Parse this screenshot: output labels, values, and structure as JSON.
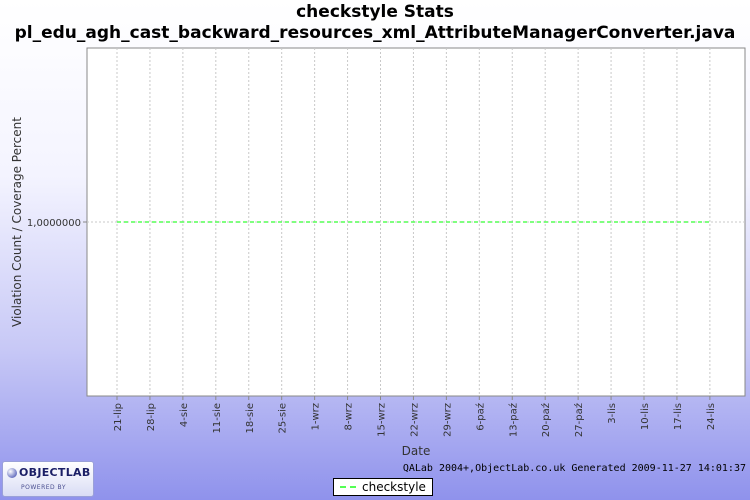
{
  "chart_data": {
    "type": "line",
    "title": "checkstyle  Stats",
    "subtitle": "pl_edu_agh_cast_backward_resources_xml_AttributeManagerConverter.java",
    "xlabel": "Date",
    "ylabel": "Violation Count / Coverage Percent",
    "x_tick_labels": [
      "21-lip",
      "28-lip",
      "4-sie",
      "11-sie",
      "18-sie",
      "25-sie",
      "1-wrz",
      "8-wrz",
      "15-wrz",
      "22-wrz",
      "29-wrz",
      "6-paź",
      "13-paź",
      "20-paź",
      "27-paź",
      "3-lis",
      "10-lis",
      "17-lis",
      "24-lis"
    ],
    "x_range": [
      "2009-07-21",
      "2009-11-27"
    ],
    "y_tick_labels": [
      "1,0000000"
    ],
    "ylim": [
      0,
      2
    ],
    "grid": true,
    "legend_position": "bottom",
    "series": [
      {
        "name": "checkstyle",
        "color": "#55ff55",
        "style": "dashed",
        "x": [
          "2009-07-21",
          "2009-07-28",
          "2009-08-04",
          "2009-08-11",
          "2009-08-18",
          "2009-08-25",
          "2009-09-01",
          "2009-09-08",
          "2009-09-15",
          "2009-09-22",
          "2009-09-29",
          "2009-10-06",
          "2009-10-13",
          "2009-10-20",
          "2009-10-27",
          "2009-11-03",
          "2009-11-10",
          "2009-11-17",
          "2009-11-24"
        ],
        "values": [
          1,
          1,
          1,
          1,
          1,
          1,
          1,
          1,
          1,
          1,
          1,
          1,
          1,
          1,
          1,
          1,
          1,
          1,
          1
        ]
      }
    ]
  },
  "footer": {
    "generated_text": "QALab 2004+,ObjectLab.co.uk Generated 2009-11-27 14:01:37"
  },
  "logo": {
    "name": "OBJECTLAB",
    "tagline": "POWERED BY"
  }
}
